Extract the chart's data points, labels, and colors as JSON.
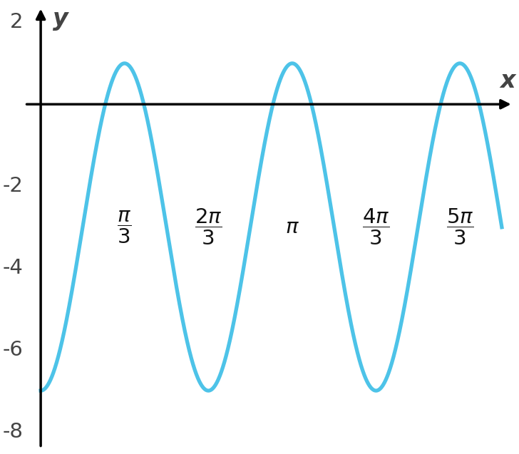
{
  "amplitude": 4,
  "vertical_shift": -3,
  "frequency": 3,
  "x_start": 0.0,
  "x_end": 5.76,
  "xlim_left": -0.25,
  "xlim_right": 5.95,
  "y_min": -8,
  "y_max": 2.5,
  "ylim_bottom": -8.5,
  "ylim_top": 2.5,
  "y_ticks": [
    -8,
    -6,
    -4,
    -2,
    2
  ],
  "curve_color": "#4DC3E8",
  "curve_linewidth": 3.8,
  "grid_color": "#c8c8c8",
  "axis_color": "#000000",
  "background_color": "#ffffff",
  "label_x": "x",
  "label_y": "y",
  "label_fontsize": 24,
  "tick_fontsize": 21,
  "x_label_y_pos": -3.0
}
